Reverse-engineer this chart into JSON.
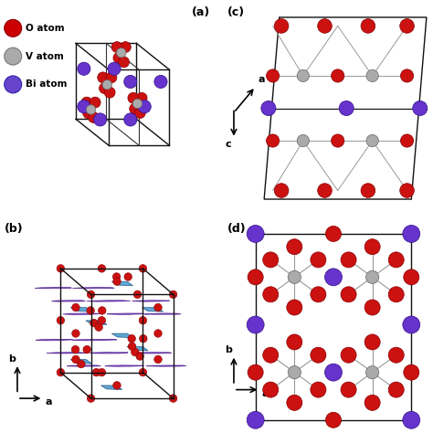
{
  "figure_width": 4.74,
  "figure_height": 4.74,
  "background_color": "#ffffff",
  "panel_labels": [
    "(a)",
    "(b)",
    "(c)",
    "(d)"
  ],
  "legend_items": [
    {
      "label": "O atom",
      "color": "#cc0000",
      "edge": "#880000"
    },
    {
      "label": "V atom",
      "color": "#aaaaaa",
      "edge": "#777777"
    },
    {
      "label": "Bi atom",
      "color": "#6644cc",
      "edge": "#3322aa"
    }
  ],
  "colors": {
    "O": "#cc1111",
    "V": "#aaaaaa",
    "Bi": "#6633cc",
    "bond": "#888888",
    "cell_edge": "#111111",
    "BiO_poly": "#8855dd",
    "VO_poly": "#4499cc"
  }
}
